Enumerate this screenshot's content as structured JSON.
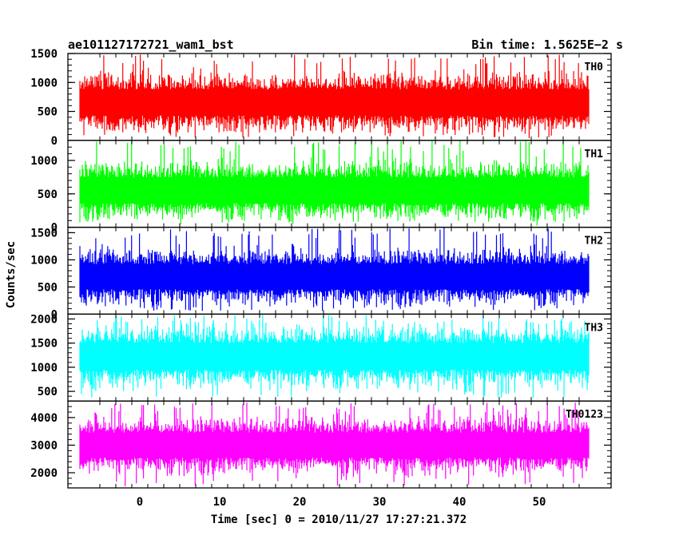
{
  "header": {
    "left": "ae101127172721_wam1_bst",
    "right": "Bin time: 1.5625E−2 s"
  },
  "chart_data": {
    "type": "line",
    "x_label": "Time [sec] 0 = 2010/11/27 17:27:21.372",
    "y_label": "Counts/sec",
    "xlim": [
      -9,
      59
    ],
    "x_range": [
      -7.5,
      56.2
    ],
    "x_ticks": [
      0,
      10,
      20,
      30,
      40,
      50
    ],
    "panels": [
      {
        "name": "TH0",
        "color": "#ff0000",
        "ylim": [
          0,
          1500
        ],
        "y_ticks": [
          0,
          500,
          1000,
          1500
        ],
        "mean": 650,
        "low": 50,
        "high": 1500,
        "band_low": 430,
        "band_high": 880
      },
      {
        "name": "TH1",
        "color": "#00ff00",
        "ylim": [
          0,
          1300
        ],
        "y_ticks": [
          0,
          500,
          1000
        ],
        "mean": 540,
        "low": 60,
        "high": 1300,
        "band_low": 360,
        "band_high": 740
      },
      {
        "name": "TH2",
        "color": "#0000ff",
        "ylim": [
          0,
          1600
        ],
        "y_ticks": [
          0,
          500,
          1000,
          1500
        ],
        "mean": 680,
        "low": 60,
        "high": 1600,
        "band_low": 460,
        "band_high": 920
      },
      {
        "name": "TH3",
        "color": "#00ffff",
        "ylim": [
          300,
          2100
        ],
        "y_ticks": [
          500,
          1000,
          1500,
          2000
        ],
        "mean": 1200,
        "low": 350,
        "high": 2080,
        "band_low": 950,
        "band_high": 1500
      },
      {
        "name": "TH0123",
        "color": "#ff00ff",
        "ylim": [
          1450,
          4600
        ],
        "y_ticks": [
          2000,
          3000,
          4000
        ],
        "mean": 3000,
        "low": 1500,
        "high": 4550,
        "band_low": 2550,
        "band_high": 3450
      }
    ]
  }
}
